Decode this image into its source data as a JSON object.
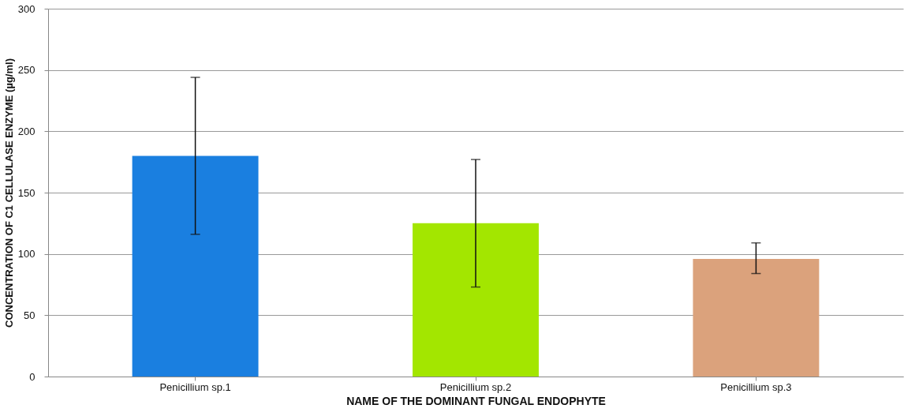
{
  "chart_data": {
    "type": "bar",
    "categories": [
      "Penicillium sp.1",
      "Penicillium sp.2",
      "Penicillium sp.3"
    ],
    "values": [
      180,
      125,
      96
    ],
    "colors": [
      "#1a7fe0",
      "#a3e600",
      "#dba27c"
    ],
    "errors": [
      [
        116,
        244
      ],
      [
        73,
        177
      ],
      [
        84,
        109
      ]
    ],
    "xlabel": "NAME OF THE DOMINANT FUNGAL ENDOPHYTE",
    "ylabel": "CONCENTRATION OF C1 CELLULASE ENZYME (µg/ml)",
    "ylim": [
      0,
      300
    ],
    "yticks": [
      0,
      50,
      100,
      150,
      200,
      250,
      300
    ],
    "grid": "y",
    "legend": false
  }
}
